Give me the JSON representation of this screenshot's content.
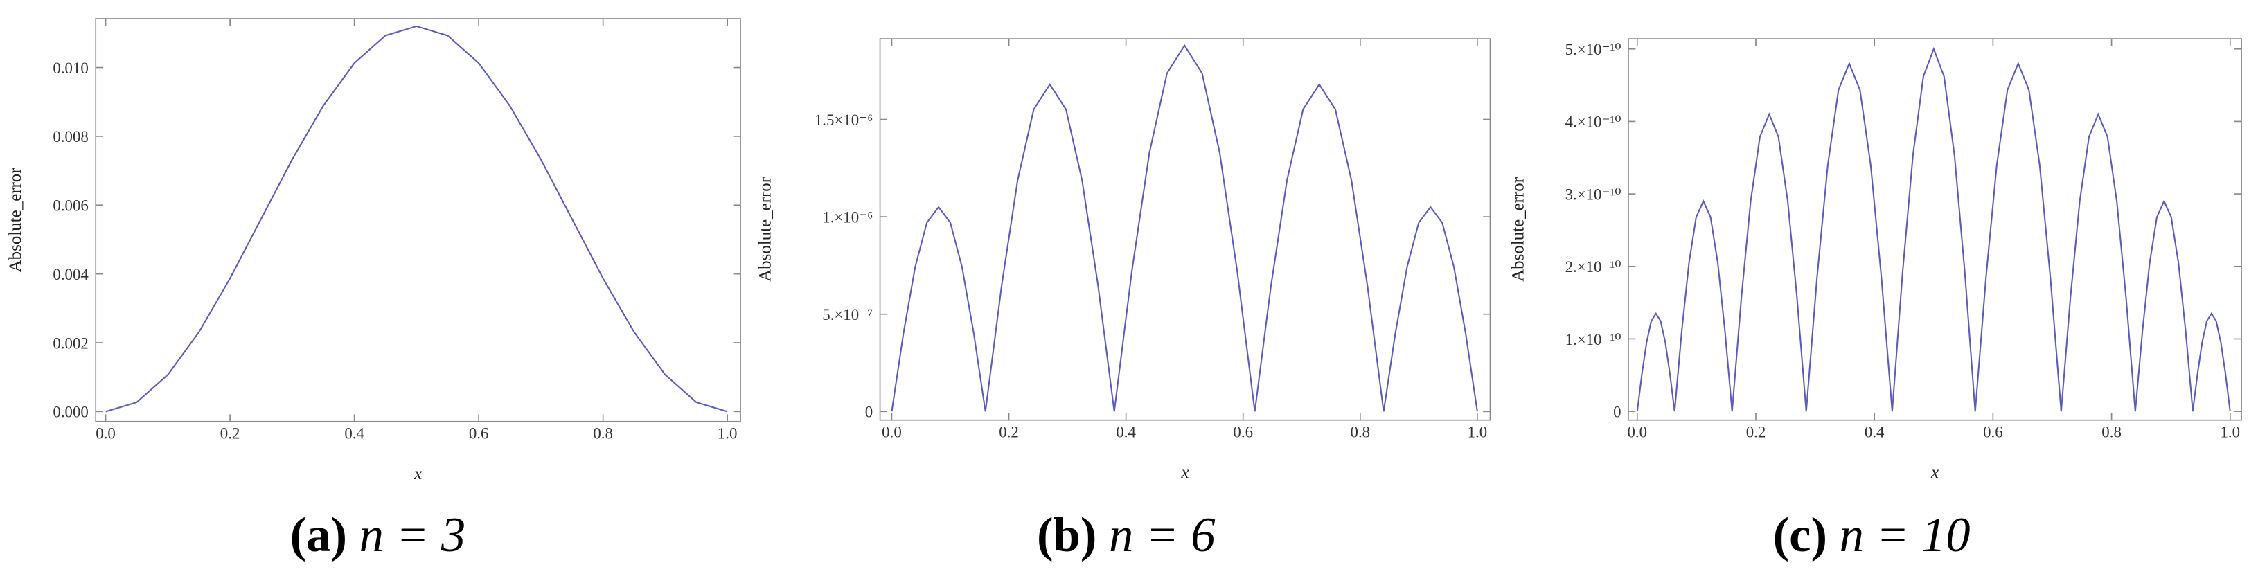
{
  "chart_data": [
    {
      "type": "line",
      "caption_label": "(a)",
      "caption_text": "n = 3",
      "xlabel": "x",
      "ylabel": "Absolute_error",
      "color": "#5c5cb8",
      "xlim": [
        -0.016,
        1.021
      ],
      "ylim": [
        -0.00029,
        0.01142
      ],
      "xticks": [
        {
          "value": 0,
          "label": "0.0"
        },
        {
          "value": 0.2,
          "label": "0.2"
        },
        {
          "value": 0.4,
          "label": "0.4"
        },
        {
          "value": 0.6,
          "label": "0.6"
        },
        {
          "value": 0.8,
          "label": "0.8"
        },
        {
          "value": 1,
          "label": "1.0"
        }
      ],
      "yticks": [
        {
          "value": 0,
          "label": "0.000"
        },
        {
          "value": 0.002,
          "label": "0.002"
        },
        {
          "value": 0.004,
          "label": "0.004"
        },
        {
          "value": 0.006,
          "label": "0.006"
        },
        {
          "value": 0.008,
          "label": "0.008"
        },
        {
          "value": 0.01,
          "label": "0.010"
        }
      ],
      "x": [
        0,
        0.05,
        0.1,
        0.15,
        0.2,
        0.25,
        0.3,
        0.35,
        0.4,
        0.45,
        0.5,
        0.55,
        0.6,
        0.65,
        0.7,
        0.75,
        0.8,
        0.85,
        0.9,
        0.95,
        1
      ],
      "values": [
        0,
        0.00027,
        0.00107,
        0.00231,
        0.00387,
        0.0056,
        0.00733,
        0.00889,
        0.01013,
        0.01093,
        0.0112,
        0.01093,
        0.01013,
        0.00889,
        0.00733,
        0.0056,
        0.00387,
        0.00231,
        0.00107,
        0.00027,
        0
      ]
    },
    {
      "type": "line",
      "caption_label": "(b)",
      "caption_text": "n = 6",
      "xlabel": "x",
      "ylabel": "Absolute_error",
      "color": "#5c5cb8",
      "xlim": [
        -0.02,
        1.022
      ],
      "ylim": [
        -4.4e-08,
        1.914e-06
      ],
      "xticks": [
        {
          "value": 0,
          "label": "0.0"
        },
        {
          "value": 0.2,
          "label": "0.2"
        },
        {
          "value": 0.4,
          "label": "0.4"
        },
        {
          "value": 0.6,
          "label": "0.6"
        },
        {
          "value": 0.8,
          "label": "0.8"
        },
        {
          "value": 1,
          "label": "1.0"
        }
      ],
      "yticks": [
        0,
        {
          "value": 5e-07,
          "label": "5.×10⁻⁷"
        },
        {
          "value": 1e-06,
          "label": "1.×10⁻⁶"
        },
        {
          "value": 1.5e-06,
          "label": "1.5×10⁻⁶"
        }
      ],
      "x": [
        0,
        0.02,
        0.04,
        0.06,
        0.08,
        0.1,
        0.12,
        0.14,
        0.16,
        0.1875,
        0.215,
        0.2425,
        0.27,
        0.2975,
        0.325,
        0.3525,
        0.38,
        0.41,
        0.44,
        0.47,
        0.5,
        0.53,
        0.56,
        0.59,
        0.62,
        0.6475,
        0.675,
        0.7025,
        0.73,
        0.7575,
        0.785,
        0.8125,
        0.84,
        0.86,
        0.88,
        0.9,
        0.92,
        0.94,
        0.96,
        0.98,
        1
      ],
      "values": [
        0,
        4.02e-07,
        7.42e-07,
        9.7e-07,
        1.05e-06,
        9.7e-07,
        7.42e-07,
        4.02e-07,
        0,
        6.43e-07,
        1.188e-06,
        1.552e-06,
        1.68e-06,
        1.552e-06,
        1.188e-06,
        6.43e-07,
        0,
        7.2e-07,
        1.329e-06,
        1.737e-06,
        1.88e-06,
        1.737e-06,
        1.329e-06,
        7.2e-07,
        0,
        6.43e-07,
        1.188e-06,
        1.552e-06,
        1.68e-06,
        1.552e-06,
        1.188e-06,
        6.43e-07,
        0,
        4.02e-07,
        7.42e-07,
        9.7e-07,
        1.05e-06,
        9.7e-07,
        7.42e-07,
        4.02e-07,
        0
      ]
    },
    {
      "type": "line",
      "caption_label": "(c)",
      "caption_text": "n = 10",
      "xlabel": "x",
      "ylabel": "Absolute_error",
      "color": "#5c5cb8",
      "xlim": [
        -0.015,
        1.019
      ],
      "ylim": [
        -1.2e-11,
        5.14e-10
      ],
      "xticks": [
        {
          "value": 0,
          "label": "0.0"
        },
        {
          "value": 0.2,
          "label": "0.2"
        },
        {
          "value": 0.4,
          "label": "0.4"
        },
        {
          "value": 0.6,
          "label": "0.6"
        },
        {
          "value": 0.8,
          "label": "0.8"
        },
        {
          "value": 1,
          "label": "1.0"
        }
      ],
      "yticks": [
        0,
        {
          "value": 1e-10,
          "label": "1.×10⁻¹⁰"
        },
        {
          "value": 2e-10,
          "label": "2.×10⁻¹⁰"
        },
        {
          "value": 3e-10,
          "label": "3.×10⁻¹⁰"
        },
        {
          "value": 4e-10,
          "label": "4.×10⁻¹⁰"
        },
        {
          "value": 5e-10,
          "label": "5.×10⁻¹⁰"
        }
      ],
      "x": [
        0,
        0.0079,
        0.0158,
        0.0236,
        0.0315,
        0.0394,
        0.0473,
        0.0551,
        0.063,
        0.0751,
        0.0873,
        0.0994,
        0.1115,
        0.1236,
        0.1358,
        0.1479,
        0.16,
        0.1756,
        0.1913,
        0.2069,
        0.2225,
        0.2381,
        0.2538,
        0.2694,
        0.285,
        0.3031,
        0.3213,
        0.3394,
        0.3575,
        0.3756,
        0.3938,
        0.4119,
        0.43,
        0.4475,
        0.465,
        0.4825,
        0.5,
        0.5175,
        0.535,
        0.5525,
        0.57,
        0.5881,
        0.6063,
        0.6244,
        0.6425,
        0.6606,
        0.6788,
        0.6969,
        0.715,
        0.7306,
        0.7463,
        0.7619,
        0.7775,
        0.7931,
        0.8088,
        0.8244,
        0.84,
        0.8521,
        0.8643,
        0.8764,
        0.8885,
        0.9006,
        0.9128,
        0.9249,
        0.937,
        0.9449,
        0.9528,
        0.9606,
        0.9685,
        0.9764,
        0.9843,
        0.9921,
        1
      ],
      "values": [
        0,
        5.17e-11,
        9.54e-11,
        1.247e-10,
        1.35e-10,
        1.247e-10,
        9.54e-11,
        5.17e-11,
        0,
        1.111e-10,
        2.05e-10,
        2.68e-10,
        2.9e-10,
        2.68e-10,
        2.05e-10,
        1.111e-10,
        0,
        1.57e-10,
        2.899e-10,
        3.788e-10,
        4.1e-10,
        3.788e-10,
        2.899e-10,
        1.57e-10,
        0,
        1.838e-10,
        3.394e-10,
        4.435e-10,
        4.8e-10,
        4.435e-10,
        3.394e-10,
        1.838e-10,
        0,
        1.915e-10,
        3.535e-10,
        4.62e-10,
        5e-10,
        4.62e-10,
        3.535e-10,
        1.915e-10,
        0,
        1.838e-10,
        3.394e-10,
        4.435e-10,
        4.8e-10,
        4.435e-10,
        3.394e-10,
        1.838e-10,
        0,
        1.57e-10,
        2.899e-10,
        3.788e-10,
        4.1e-10,
        3.788e-10,
        2.899e-10,
        1.57e-10,
        0,
        1.111e-10,
        2.05e-10,
        2.68e-10,
        2.9e-10,
        2.68e-10,
        2.05e-10,
        1.111e-10,
        0,
        5.17e-11,
        9.54e-11,
        1.247e-10,
        1.35e-10,
        1.247e-10,
        9.54e-11,
        5.17e-11,
        0
      ]
    }
  ]
}
